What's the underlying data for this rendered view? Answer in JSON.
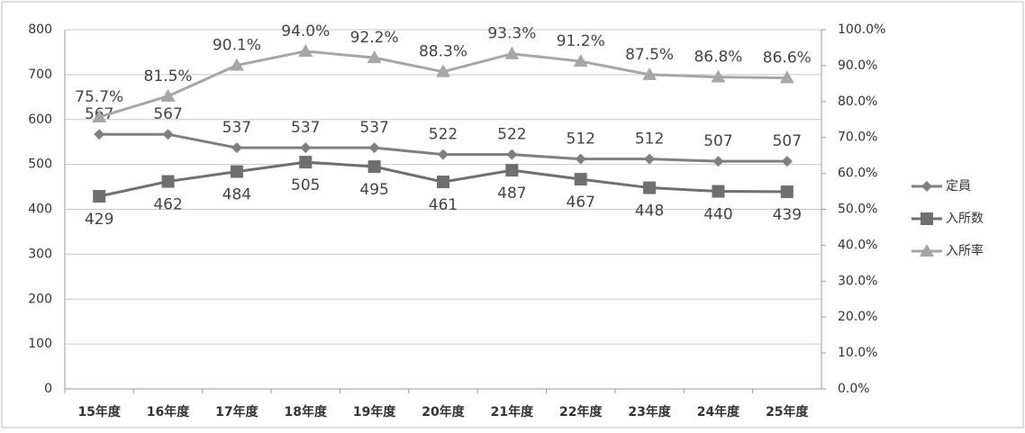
{
  "chart_data": {
    "type": "line",
    "categories": [
      "15年度",
      "16年度",
      "17年度",
      "18年度",
      "19年度",
      "20年度",
      "21年度",
      "22年度",
      "23年度",
      "24年度",
      "25年度"
    ],
    "series": [
      {
        "name": "定員",
        "color": "#7f7f7f",
        "marker": "diamond",
        "values": [
          567,
          567,
          537,
          537,
          537,
          522,
          522,
          512,
          512,
          507,
          507
        ]
      },
      {
        "name": "入所数",
        "color": "#6f6f6f",
        "marker": "square",
        "values": [
          429,
          462,
          484,
          505,
          495,
          461,
          487,
          467,
          448,
          440,
          439
        ]
      },
      {
        "name": "入所率",
        "color": "#a6a6a6",
        "marker": "triangle",
        "axis": "y2",
        "values": [
          75.7,
          81.5,
          90.1,
          94.0,
          92.2,
          88.3,
          93.3,
          91.2,
          87.5,
          86.8,
          86.6
        ],
        "value_labels": [
          "75.7%",
          "81.5%",
          "90.1%",
          "94.0%",
          "92.2%",
          "88.3%",
          "93.3%",
          "91.2%",
          "87.5%",
          "86.8%",
          "86.6%"
        ]
      }
    ],
    "ylim": [
      0,
      800
    ],
    "yticks": [
      0,
      100,
      200,
      300,
      400,
      500,
      600,
      700,
      800
    ],
    "y2lim": [
      0,
      100
    ],
    "y2ticks": [
      {
        "value": 0,
        "label": "0.0%"
      },
      {
        "value": 10,
        "label": "10.0%"
      },
      {
        "value": 20,
        "label": "20.0%"
      },
      {
        "value": 30,
        "label": "30.0%"
      },
      {
        "value": 40,
        "label": "40.0%"
      },
      {
        "value": 50,
        "label": "50.0%"
      },
      {
        "value": 60,
        "label": "60.0%"
      },
      {
        "value": 70,
        "label": "70.0%"
      },
      {
        "value": 80,
        "label": "80.0%"
      },
      {
        "value": 90,
        "label": "90.0%"
      },
      {
        "value": 100,
        "label": "100.0%"
      }
    ],
    "grid": true,
    "legend": "right"
  }
}
